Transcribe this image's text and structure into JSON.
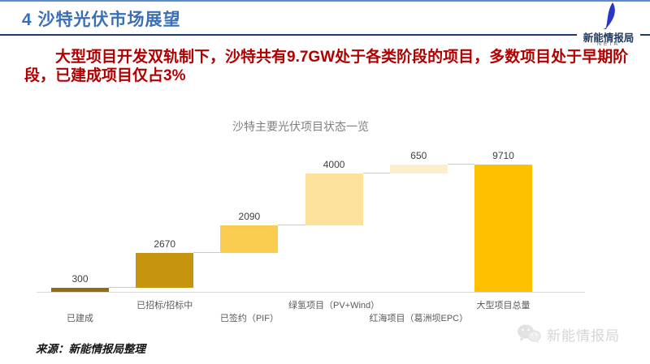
{
  "header": {
    "top_title": "4 沙特光伏市场展望",
    "brand": {
      "name": "新能情报局",
      "abbr": "NEIA",
      "icon": "feather-icon"
    }
  },
  "summary": {
    "text": "大型项目开发双轨制下，沙特共有9.7GW处于各类阶段的项目，多数项目处于早期阶段，已建成项目仅占3%"
  },
  "chart_data": {
    "type": "bar",
    "subtype": "waterfall",
    "title": "沙特主要光伏项目状态一览",
    "categories": [
      "已建成",
      "已招标/招标中",
      "已签约（PIF）",
      "绿氢项目（PV+Wind）",
      "红海项目（葛洲坝EPC）",
      "大型项目总量"
    ],
    "values": [
      300,
      2670,
      2090,
      4000,
      650,
      9710
    ],
    "is_total": [
      false,
      false,
      false,
      false,
      false,
      true
    ],
    "bar_colors": [
      "#8f6e0e",
      "#c6940e",
      "#facd51",
      "#fce29c",
      "#fdefcd",
      "#ffc000"
    ],
    "value_label_color": "#3f3f3f",
    "category_label_color": "#595959",
    "axis_color": "#d9d9d9",
    "connector_color": "#c9c9c9",
    "ylim": [
      0,
      9710
    ],
    "grid": false,
    "legend": false
  },
  "footer": {
    "source": "来源：新能情报局整理",
    "watermark": {
      "icon": "wechat-icon",
      "text": "新能情报局"
    }
  },
  "colors": {
    "accent_blue": "#3a6fb5",
    "divider_navy": "#203a66",
    "summary_red": "#b20000",
    "chart_title_gray": "#7f7f7f"
  }
}
